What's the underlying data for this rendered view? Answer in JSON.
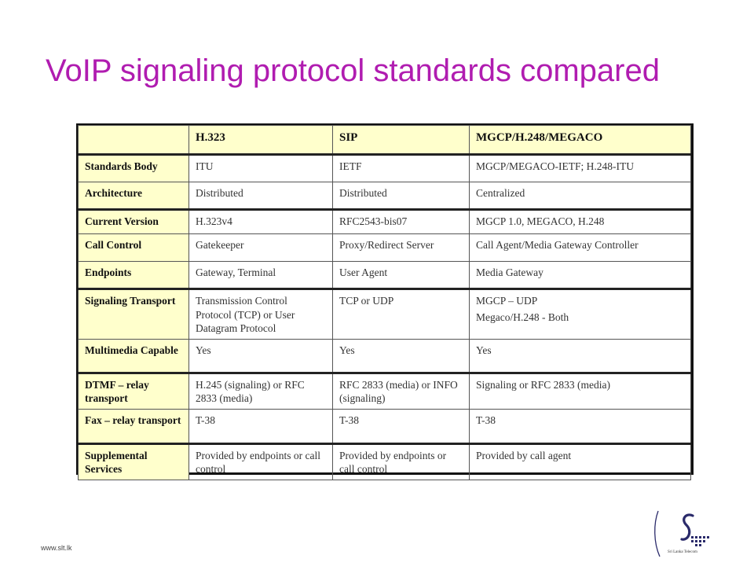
{
  "title": "VoIP signaling protocol standards compared",
  "table": {
    "header": [
      "",
      "H.323",
      "SIP",
      "MGCP/H.248/MEGACO"
    ],
    "rows": [
      {
        "label": "Standards Body",
        "h323": [
          "ITU"
        ],
        "sip": [
          "IETF"
        ],
        "mgcp": [
          "MGCP/MEGACO-IETF; H.248-ITU"
        ]
      },
      {
        "label": "Architecture",
        "h323": [
          "Distributed"
        ],
        "sip": [
          "Distributed"
        ],
        "mgcp": [
          "Centralized"
        ]
      },
      {
        "label": "Current Version",
        "h323": [
          "H.323v4"
        ],
        "sip": [
          "RFC2543-bis07"
        ],
        "mgcp": [
          "MGCP 1.0, MEGACO, H.248"
        ]
      },
      {
        "label": "Call Control",
        "h323": [
          "Gatekeeper"
        ],
        "sip": [
          "Proxy/Redirect Server"
        ],
        "mgcp": [
          "Call Agent/Media Gateway Controller"
        ]
      },
      {
        "label": "Endpoints",
        "h323": [
          "Gateway, Terminal"
        ],
        "sip": [
          "User Agent"
        ],
        "mgcp": [
          "Media Gateway"
        ]
      },
      {
        "label": "Signaling Transport",
        "h323": [
          "Transmission Control Protocol (TCP) or User Datagram Protocol"
        ],
        "sip": [
          "TCP or UDP"
        ],
        "mgcp": [
          "MGCP – UDP",
          "Megaco/H.248 - Both"
        ]
      },
      {
        "label": "Multimedia Capable",
        "h323": [
          "Yes"
        ],
        "sip": [
          "Yes"
        ],
        "mgcp": [
          "Yes"
        ]
      },
      {
        "label": "DTMF – relay transport",
        "h323": [
          "H.245 (signaling) or RFC 2833 (media)"
        ],
        "sip": [
          "RFC 2833 (media) or INFO (signaling)"
        ],
        "mgcp": [
          "Signaling or RFC 2833 (media)"
        ]
      },
      {
        "label": "Fax – relay transport",
        "h323": [
          "T-38"
        ],
        "sip": [
          "T-38"
        ],
        "mgcp": [
          "T-38"
        ]
      },
      {
        "label": "Supplemental Services",
        "h323": [
          "Provided by endpoints or call control"
        ],
        "sip": [
          "Provided by endpoints or call control"
        ],
        "mgcp": [
          "Provided by call agent"
        ]
      }
    ]
  },
  "footer": {
    "url": "www.slt.lk"
  },
  "logo": {
    "text": "Sri Lanka Telecom",
    "icon": "slt-logo-icon"
  },
  "colors": {
    "title": "#b01cb0",
    "header_fill": "#ffffcc"
  }
}
